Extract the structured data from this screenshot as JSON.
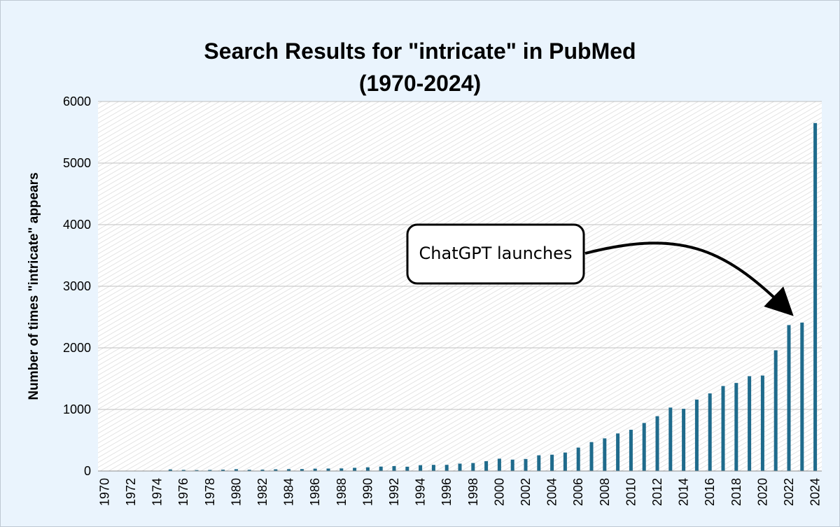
{
  "chart_data": {
    "type": "bar",
    "title": "Search Results for \"intricate\" in PubMed\n(1970-2024)",
    "ylabel": "Number of times \"intricate\" appears",
    "xlabel": "",
    "ylim": [
      0,
      6000
    ],
    "yticks": [
      0,
      1000,
      2000,
      3000,
      4000,
      5000,
      6000
    ],
    "categories": [
      "1970",
      "1971",
      "1972",
      "1973",
      "1974",
      "1975",
      "1976",
      "1977",
      "1978",
      "1979",
      "1980",
      "1981",
      "1982",
      "1983",
      "1984",
      "1985",
      "1986",
      "1987",
      "1988",
      "1989",
      "1990",
      "1991",
      "1992",
      "1993",
      "1994",
      "1995",
      "1996",
      "1997",
      "1998",
      "1999",
      "2000",
      "2001",
      "2002",
      "2003",
      "2004",
      "2005",
      "2006",
      "2007",
      "2008",
      "2009",
      "2010",
      "2011",
      "2012",
      "2013",
      "2014",
      "2015",
      "2016",
      "2017",
      "2018",
      "2019",
      "2020",
      "2021",
      "2022",
      "2023",
      "2024"
    ],
    "xtick_labels": [
      "1970",
      "1972",
      "1974",
      "1976",
      "1978",
      "1980",
      "1982",
      "1984",
      "1986",
      "1988",
      "1990",
      "1992",
      "1994",
      "1996",
      "1998",
      "2000",
      "2002",
      "2004",
      "2006",
      "2008",
      "2010",
      "2012",
      "2014",
      "2016",
      "2018",
      "2020",
      "2022",
      "2024"
    ],
    "values": [
      0,
      0,
      0,
      0,
      0,
      25,
      18,
      15,
      18,
      22,
      30,
      20,
      22,
      28,
      30,
      32,
      38,
      40,
      42,
      52,
      60,
      72,
      80,
      70,
      95,
      100,
      100,
      120,
      130,
      160,
      200,
      185,
      195,
      255,
      265,
      300,
      380,
      470,
      530,
      610,
      670,
      780,
      890,
      1030,
      1010,
      1160,
      1260,
      1380,
      1430,
      1540,
      1550,
      1960,
      2370,
      2410,
      5650
    ],
    "values_note": "",
    "bar_color": "#1f6b8c",
    "grid": true,
    "annotation": {
      "text": "ChatGPT launches",
      "arrow_target_category": "2023"
    }
  }
}
